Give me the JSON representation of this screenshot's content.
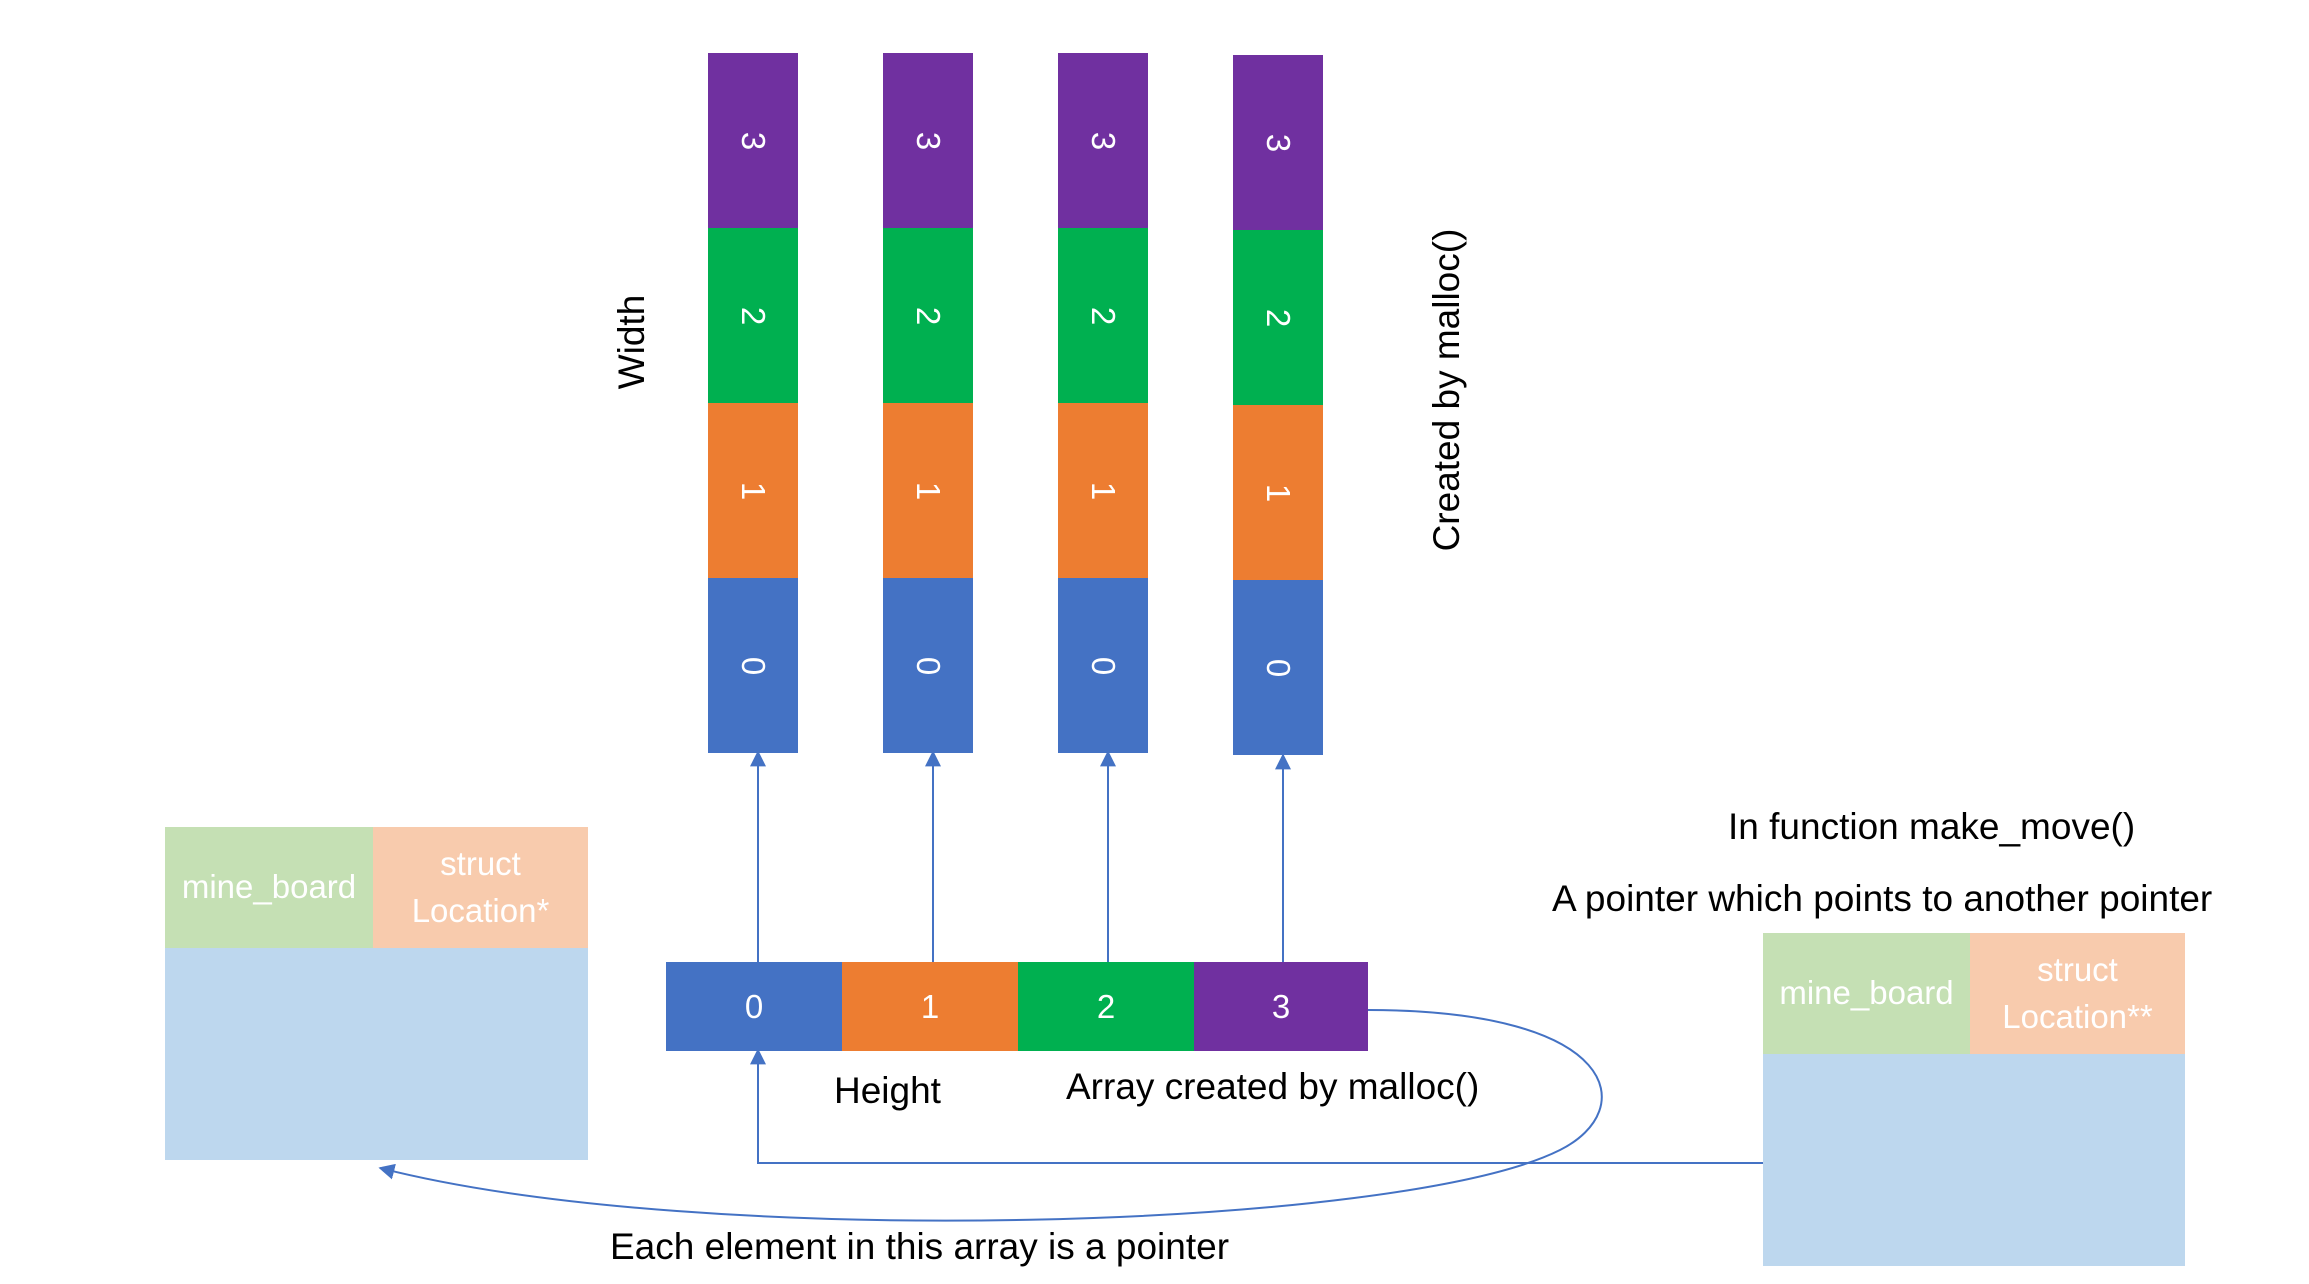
{
  "colors": {
    "blue": "#4472c4",
    "orange": "#ed7d31",
    "green": "#00b050",
    "purple": "#7030a0",
    "struct_green": "#c5e0b4",
    "struct_peach": "#f8cbad",
    "struct_body": "#bdd7ee",
    "line": "#4472c4"
  },
  "columns": [
    {
      "cells": [
        "0",
        "1",
        "2",
        "3"
      ]
    },
    {
      "cells": [
        "0",
        "1",
        "2",
        "3"
      ]
    },
    {
      "cells": [
        "0",
        "1",
        "2",
        "3"
      ]
    },
    {
      "cells": [
        "0",
        "1",
        "2",
        "3"
      ]
    }
  ],
  "array": {
    "cells": [
      "0",
      "1",
      "2",
      "3"
    ]
  },
  "labels": {
    "width": "Width",
    "created_by_malloc": "Created by malloc()",
    "height": "Height",
    "array_created": "Array created by malloc()",
    "each_element": "Each element in this array is a pointer",
    "in_function": "In function make_move()",
    "pointer_desc": "A pointer which points to another pointer"
  },
  "left_struct": {
    "field1": "mine_board",
    "field2_line1": "struct",
    "field2_line2": "Location*"
  },
  "right_struct": {
    "field1": "mine_board",
    "field2_line1": "struct",
    "field2_line2": "Location**"
  }
}
